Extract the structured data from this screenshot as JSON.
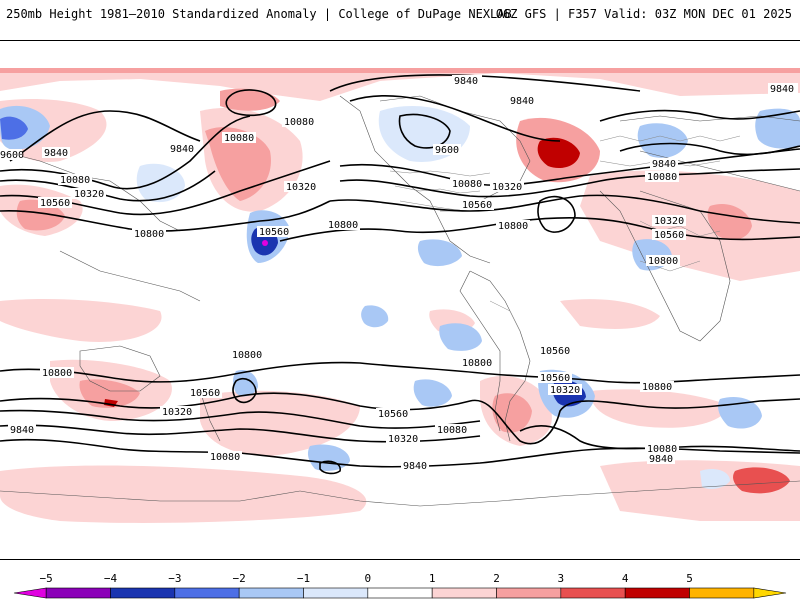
{
  "header": {
    "title_left": "250mb Height 1981–2010 Standardized Anomaly | College of DuPage NEXLAB",
    "title_right": "06Z GFS | F357 Valid: 03Z MON DEC 01 2025"
  },
  "map": {
    "contour_labels": [
      {
        "id": "c1",
        "text": "9840"
      },
      {
        "id": "c2",
        "text": "9840"
      },
      {
        "id": "c3",
        "text": "9840"
      },
      {
        "id": "c4",
        "text": "10080"
      },
      {
        "id": "c5",
        "text": "9600"
      },
      {
        "id": "c6",
        "text": "9600"
      },
      {
        "id": "c7",
        "text": "9840"
      },
      {
        "id": "c8",
        "text": "9840"
      },
      {
        "id": "c9",
        "text": "10080"
      },
      {
        "id": "c10",
        "text": "10080"
      },
      {
        "id": "c11",
        "text": "10320"
      },
      {
        "id": "c12",
        "text": "10560"
      },
      {
        "id": "c13",
        "text": "10800"
      },
      {
        "id": "c14",
        "text": "10320"
      },
      {
        "id": "c15",
        "text": "10560"
      },
      {
        "id": "c16",
        "text": "10800"
      },
      {
        "id": "c17",
        "text": "10080"
      },
      {
        "id": "c18",
        "text": "10320"
      },
      {
        "id": "c19",
        "text": "10560"
      },
      {
        "id": "c20",
        "text": "10800"
      },
      {
        "id": "c21",
        "text": "9840"
      },
      {
        "id": "c22",
        "text": "10080"
      },
      {
        "id": "c23",
        "text": "10320"
      },
      {
        "id": "c24",
        "text": "10560"
      },
      {
        "id": "c25",
        "text": "10800"
      },
      {
        "id": "c26",
        "text": "10800"
      },
      {
        "id": "c27",
        "text": "10800"
      },
      {
        "id": "c28",
        "text": "10560"
      },
      {
        "id": "c29",
        "text": "10320"
      },
      {
        "id": "c30",
        "text": "10080"
      },
      {
        "id": "c31",
        "text": "9840"
      },
      {
        "id": "c32",
        "text": "10560"
      },
      {
        "id": "c33",
        "text": "10320"
      },
      {
        "id": "c34",
        "text": "10080"
      },
      {
        "id": "c35",
        "text": "10800"
      },
      {
        "id": "c36",
        "text": "10560"
      },
      {
        "id": "c37",
        "text": "10320"
      },
      {
        "id": "c38",
        "text": "10800"
      },
      {
        "id": "c39",
        "text": "10080"
      },
      {
        "id": "c40",
        "text": "9840"
      },
      {
        "id": "c41",
        "text": "10560"
      },
      {
        "id": "c42",
        "text": "10320"
      },
      {
        "id": "c43",
        "text": "9840"
      }
    ]
  },
  "colorbar": {
    "ticks": [
      "−5",
      "−4",
      "−3",
      "−2",
      "−1",
      "0",
      "1",
      "2",
      "3",
      "4",
      "5"
    ],
    "tick_values": [
      -5,
      -4,
      -3,
      -2,
      -1,
      0,
      1,
      2,
      3,
      4,
      5
    ],
    "colors": [
      "#8b00b8",
      "#1a34b0",
      "#4d6fe6",
      "#a9c8f5",
      "#dbe8fb",
      "#ffffff",
      "#fcd4d4",
      "#f6a0a0",
      "#e85050",
      "#c00000",
      "#ffb300"
    ],
    "under_color": "#e000e0",
    "over_color": "#ffd700"
  }
}
